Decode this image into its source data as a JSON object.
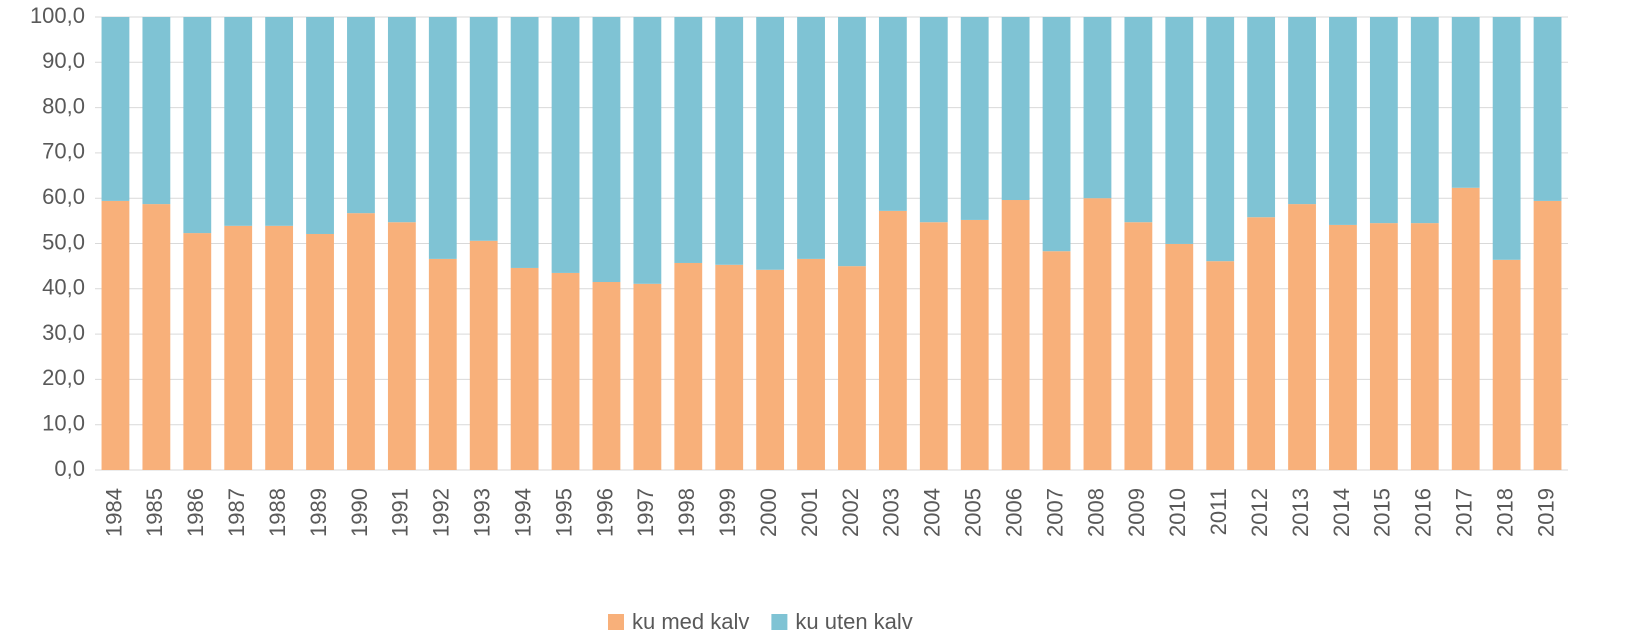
{
  "chart_data": {
    "type": "stacked-bar",
    "categories": [
      "1984",
      "1985",
      "1986",
      "1987",
      "1988",
      "1989",
      "1990",
      "1991",
      "1992",
      "1993",
      "1994",
      "1995",
      "1996",
      "1997",
      "1998",
      "1999",
      "2000",
      "2001",
      "2002",
      "2003",
      "2004",
      "2005",
      "2006",
      "2007",
      "2008",
      "2009",
      "2010",
      "2011",
      "2012",
      "2013",
      "2014",
      "2015",
      "2016",
      "2017",
      "2018",
      "2019"
    ],
    "series": [
      {
        "name": "ku med kalv",
        "color": "#f8b07a",
        "values": [
          59.4,
          58.7,
          52.3,
          53.9,
          53.9,
          52.1,
          56.7,
          54.7,
          46.6,
          50.6,
          44.6,
          43.5,
          41.5,
          41.1,
          45.7,
          45.3,
          44.2,
          46.6,
          45.0,
          57.2,
          54.7,
          55.2,
          59.6,
          48.3,
          60.0,
          54.7,
          49.9,
          46.1,
          55.8,
          58.7,
          54.1,
          54.5,
          54.5,
          62.3,
          46.4,
          59.4
        ]
      },
      {
        "name": "ku uten kalv",
        "color": "#7fc3d4",
        "values": [
          40.6,
          41.3,
          47.7,
          46.1,
          46.1,
          47.9,
          43.3,
          45.3,
          53.4,
          49.4,
          55.4,
          56.5,
          58.5,
          58.9,
          54.3,
          54.7,
          55.8,
          53.4,
          55.0,
          42.8,
          45.3,
          44.8,
          40.4,
          51.7,
          40.0,
          45.3,
          50.1,
          53.9,
          44.2,
          41.3,
          45.9,
          45.5,
          45.5,
          37.7,
          53.6,
          40.6
        ]
      }
    ],
    "ylim": [
      0,
      100
    ],
    "yticks": [
      {
        "value": 0,
        "label": "0,0"
      },
      {
        "value": 10,
        "label": "10,0"
      },
      {
        "value": 20,
        "label": "20,0"
      },
      {
        "value": 30,
        "label": "30,0"
      },
      {
        "value": 40,
        "label": "40,0"
      },
      {
        "value": 50,
        "label": "50,0"
      },
      {
        "value": 60,
        "label": "60,0"
      },
      {
        "value": 70,
        "label": "70,0"
      },
      {
        "value": 80,
        "label": "80,0"
      },
      {
        "value": 90,
        "label": "90,0"
      },
      {
        "value": 100,
        "label": "100,0"
      }
    ],
    "grid": true,
    "legend": "bottom"
  }
}
